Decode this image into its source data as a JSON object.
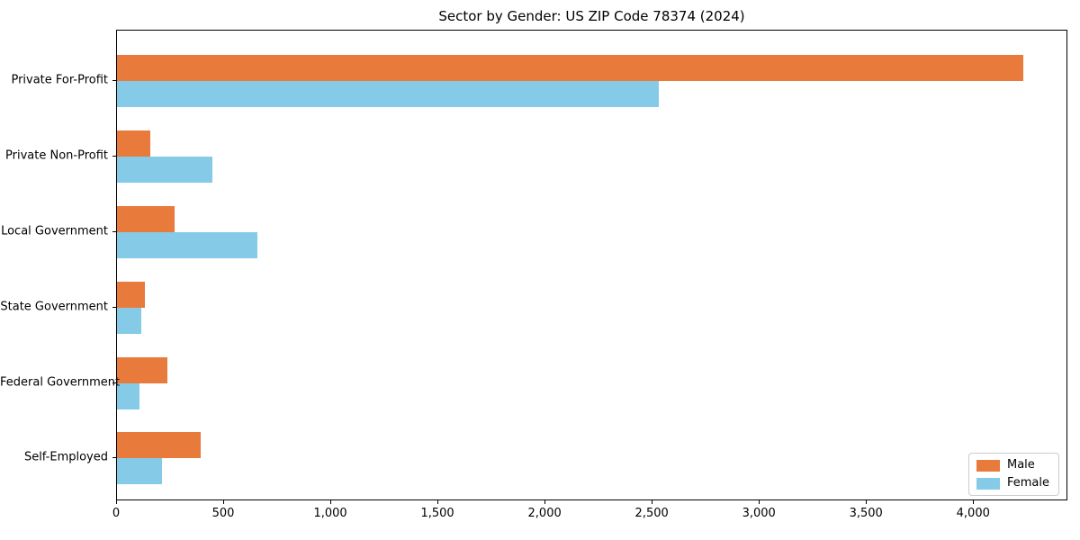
{
  "chart_data": {
    "type": "bar",
    "orientation": "horizontal",
    "title": "Sector by Gender: US ZIP Code 78374 (2024)",
    "categories": [
      "Private For-Profit",
      "Private Non-Profit",
      "Local Government",
      "State Government",
      "Federal Government",
      "Self-Employed"
    ],
    "series": [
      {
        "name": "Male",
        "color": "#e87b3c",
        "values": [
          4230,
          155,
          270,
          130,
          235,
          390
        ]
      },
      {
        "name": "Female",
        "color": "#85cbe8",
        "values": [
          2530,
          445,
          655,
          115,
          105,
          210
        ]
      }
    ],
    "xlabel": "",
    "ylabel": "",
    "xlim": [
      0,
      4440
    ],
    "xticks": [
      0,
      500,
      1000,
      1500,
      2000,
      2500,
      3000,
      3500,
      4000
    ],
    "xtick_labels": [
      "0",
      "500",
      "1,000",
      "1,500",
      "2,000",
      "2,500",
      "3,000",
      "3,500",
      "4,000"
    ],
    "grid": false,
    "legend": {
      "position": "lower right",
      "entries": [
        "Male",
        "Female"
      ]
    }
  },
  "colors": {
    "male": "#e87b3c",
    "female": "#85cbe8",
    "axis": "#000000",
    "background": "#ffffff",
    "legend_border": "#cccccc"
  }
}
